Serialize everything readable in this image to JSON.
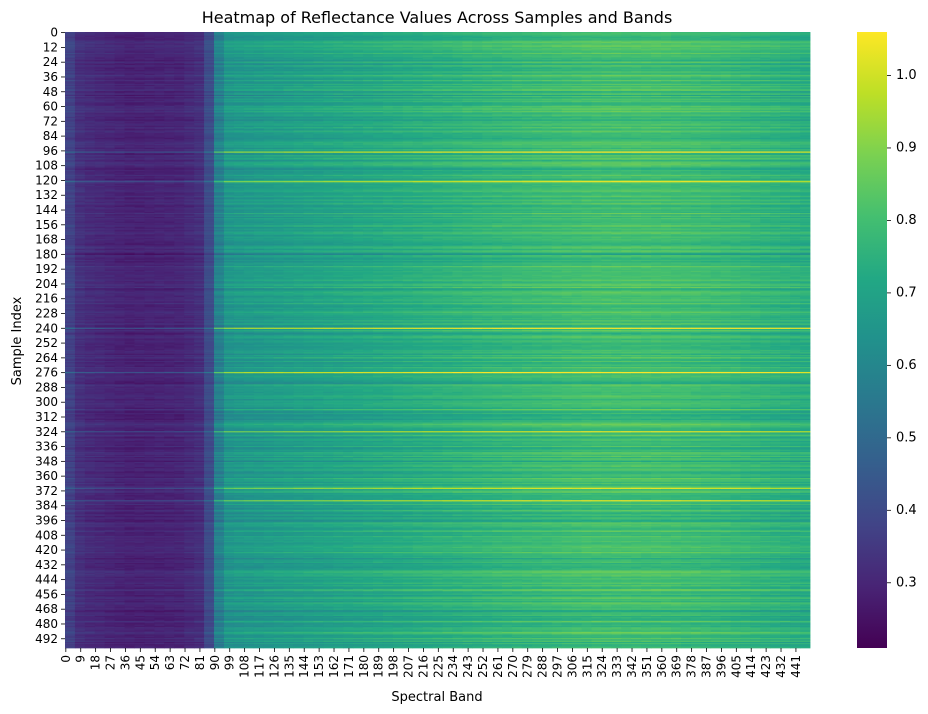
{
  "chart_data": {
    "type": "heatmap",
    "title": "Heatmap of Reflectance Values Across Samples and Bands",
    "xlabel": "Spectral Band",
    "ylabel": "Sample Index",
    "n_rows": 500,
    "n_cols": 450,
    "x_tick_labels": [
      "0",
      "9",
      "18",
      "27",
      "36",
      "45",
      "54",
      "63",
      "72",
      "81",
      "90",
      "99",
      "108",
      "117",
      "126",
      "135",
      "144",
      "153",
      "162",
      "171",
      "180",
      "189",
      "198",
      "207",
      "216",
      "225",
      "234",
      "243",
      "252",
      "261",
      "270",
      "279",
      "288",
      "297",
      "306",
      "315",
      "324",
      "333",
      "342",
      "351",
      "360",
      "369",
      "378",
      "387",
      "396",
      "405",
      "414",
      "423",
      "432",
      "441"
    ],
    "y_tick_labels": [
      "0",
      "12",
      "24",
      "36",
      "48",
      "60",
      "72",
      "84",
      "96",
      "108",
      "120",
      "132",
      "144",
      "156",
      "168",
      "180",
      "192",
      "204",
      "216",
      "228",
      "240",
      "252",
      "264",
      "276",
      "288",
      "300",
      "312",
      "324",
      "336",
      "348",
      "360",
      "372",
      "384",
      "396",
      "408",
      "420",
      "432",
      "444",
      "456",
      "468",
      "480",
      "492"
    ],
    "colorbar": {
      "colormap": "viridis",
      "vmin": 0.21,
      "vmax": 1.06,
      "tick_values": [
        0.3,
        0.4,
        0.5,
        0.6,
        0.7,
        0.8,
        0.9,
        1.0
      ],
      "tick_labels": [
        "0.3",
        "0.4",
        "0.5",
        "0.6",
        "0.7",
        "0.8",
        "0.9",
        "1.0"
      ]
    },
    "band_profile": {
      "description_free": true,
      "bands": [
        0,
        10,
        40,
        70,
        84,
        88,
        92,
        96,
        100,
        140,
        200,
        260,
        320,
        360,
        400,
        449
      ],
      "reflectance": [
        0.4,
        0.32,
        0.29,
        0.3,
        0.33,
        0.43,
        0.56,
        0.64,
        0.66,
        0.69,
        0.73,
        0.77,
        0.8,
        0.8,
        0.78,
        0.74
      ]
    },
    "bright_rows": [
      97,
      121,
      240,
      276,
      324,
      370,
      380
    ],
    "dark_rows": [
      3,
      180,
      308,
      470
    ]
  },
  "colors": {
    "background": "#ffffff",
    "text": "#000000"
  }
}
